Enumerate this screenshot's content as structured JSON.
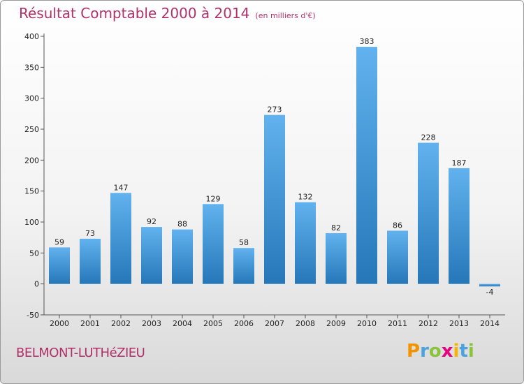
{
  "header": {
    "title": "Résultat Comptable 2000 à 2014",
    "unit": "(en milliers d'€)"
  },
  "footer": {
    "town": "BELMONT-LUTHéZIEU",
    "logo_letters": [
      "P",
      "r",
      "o",
      "x",
      "i",
      "t",
      "i"
    ]
  },
  "colors": {
    "bar_top": "#61b2ee",
    "bar_bottom": "#2577b8",
    "title": "#b0306a",
    "logo": [
      "#f29400",
      "#4aa3df",
      "#8ac43f",
      "#e6007e",
      "#f7b500",
      "#4aa3df",
      "#8ac43f"
    ]
  },
  "chart_data": {
    "type": "bar",
    "title": "Résultat Comptable 2000 à 2014",
    "xlabel": "",
    "ylabel": "en milliers d'€",
    "categories": [
      "2000",
      "2001",
      "2002",
      "2003",
      "2004",
      "2005",
      "2006",
      "2007",
      "2008",
      "2009",
      "2010",
      "2011",
      "2012",
      "2013",
      "2014"
    ],
    "values": [
      59,
      73,
      147,
      92,
      88,
      129,
      58,
      273,
      132,
      82,
      383,
      86,
      228,
      187,
      -4
    ],
    "ylim": [
      -50,
      400
    ],
    "yticks": [
      -50,
      0,
      50,
      100,
      150,
      200,
      250,
      300,
      350,
      400
    ],
    "grid": false,
    "legend": "none"
  }
}
